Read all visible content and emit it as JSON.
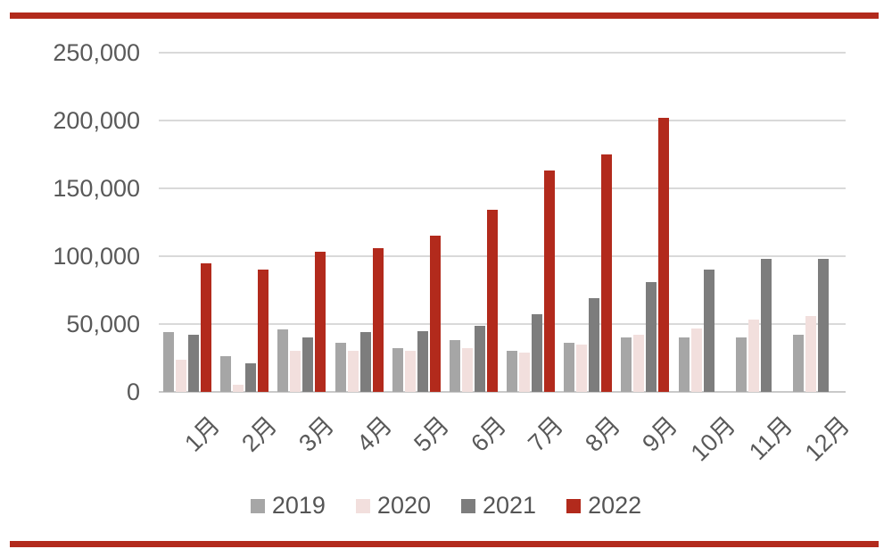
{
  "page": {
    "background": "#ffffff",
    "rule_color": "#b22a1c"
  },
  "chart_data": {
    "type": "bar",
    "title": "",
    "xlabel": "",
    "ylabel": "",
    "categories": [
      "1月",
      "2月",
      "3月",
      "4月",
      "5月",
      "6月",
      "7月",
      "8月",
      "9月",
      "10月",
      "11月",
      "12月"
    ],
    "series": [
      {
        "name": "2019",
        "color": "#a6a6a6",
        "values": [
          44000,
          26000,
          46000,
          36000,
          32000,
          38000,
          30000,
          36000,
          40000,
          40000,
          40000,
          42000
        ]
      },
      {
        "name": "2020",
        "color": "#f2dfdd",
        "values": [
          24000,
          5000,
          30000,
          30000,
          30000,
          32000,
          29000,
          35000,
          42000,
          47000,
          53000,
          56000
        ]
      },
      {
        "name": "2021",
        "color": "#7d7d7d",
        "values": [
          42000,
          21000,
          40000,
          44000,
          45000,
          49000,
          57000,
          69000,
          81000,
          90000,
          98000,
          98000
        ]
      },
      {
        "name": "2022",
        "color": "#b22a1c",
        "values": [
          95000,
          90000,
          103000,
          106000,
          115000,
          134000,
          163000,
          175000,
          202000,
          null,
          null,
          null
        ]
      }
    ],
    "ylim": [
      0,
      250000
    ],
    "ytick_interval": 50000,
    "yticks": [
      {
        "value": 250000,
        "label": "250,000"
      },
      {
        "value": 200000,
        "label": "200,000"
      },
      {
        "value": 150000,
        "label": "150,000"
      },
      {
        "value": 100000,
        "label": "100,000"
      },
      {
        "value": 50000,
        "label": "50,000"
      },
      {
        "value": 0,
        "label": "0"
      }
    ],
    "grid": true,
    "gridline_color": "#d9d9d9",
    "axis_text_color": "#595959",
    "legend_position": "bottom"
  }
}
